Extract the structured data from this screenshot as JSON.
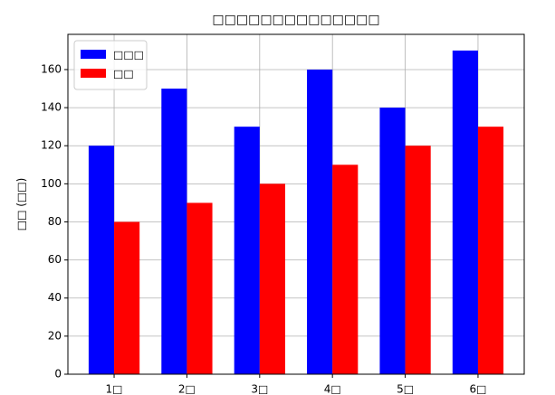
{
  "chart_data": {
    "type": "bar",
    "title": "□□□□□□□□□□□□□□",
    "ylabel": "□□ (□□)",
    "categories": [
      "1□",
      "2□",
      "3□",
      "4□",
      "5□",
      "6□"
    ],
    "series": [
      {
        "name": "□□□",
        "color": "#0000ff",
        "values": [
          120,
          150,
          130,
          160,
          140,
          170
        ]
      },
      {
        "name": "□□",
        "color": "#ff0000",
        "values": [
          80,
          90,
          100,
          110,
          120,
          130
        ]
      }
    ],
    "ylim": [
      0,
      178.5
    ],
    "yticks": [
      0,
      20,
      40,
      60,
      80,
      100,
      120,
      140,
      160
    ],
    "grid": true,
    "legend": "upper left"
  }
}
